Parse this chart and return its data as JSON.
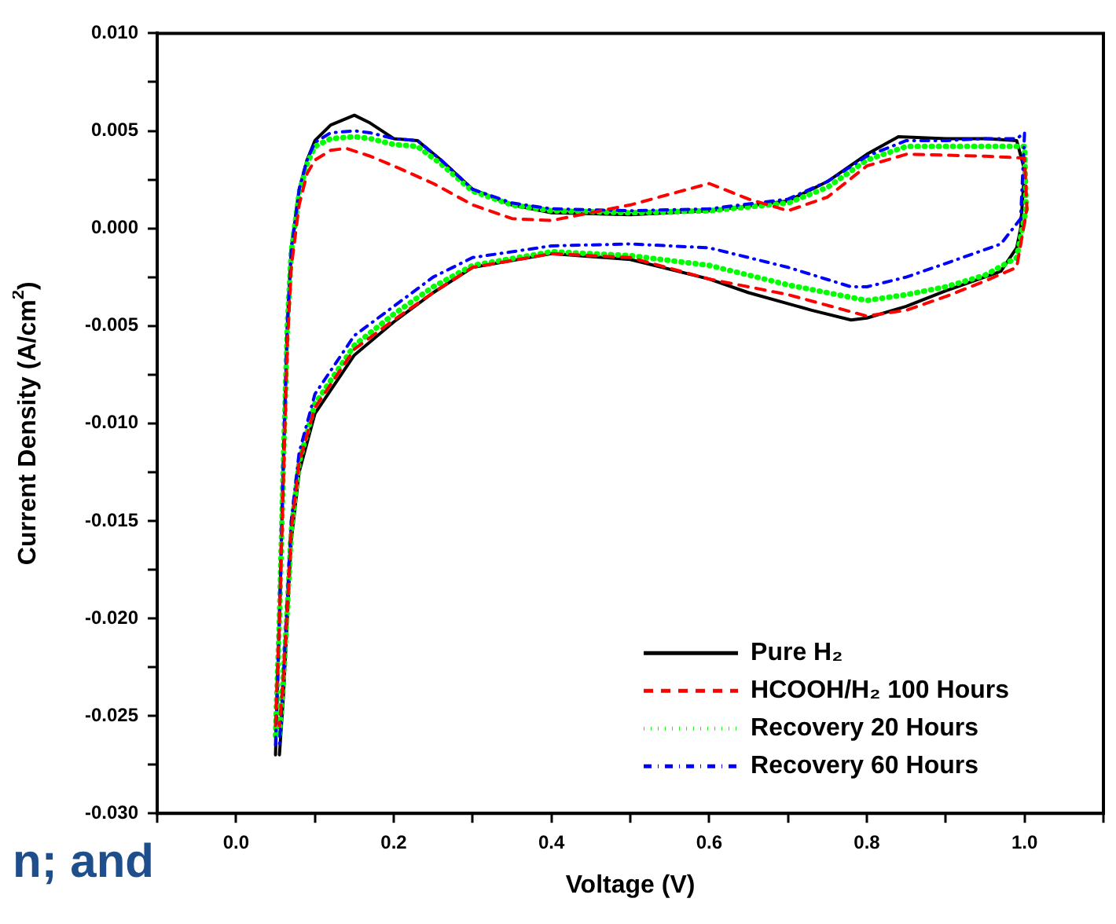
{
  "chart_data": {
    "type": "line",
    "xlabel": "Voltage (V)",
    "ylabel": "Current Density (A/cm$^{2}$)",
    "xlim": [
      -0.1,
      1.1
    ],
    "ylim": [
      -0.03,
      0.01
    ],
    "xticks": [
      {
        "value": -0.1,
        "label": null
      },
      {
        "value": 0,
        "label": "0.0"
      },
      {
        "value": 0.1,
        "label": null
      },
      {
        "value": 0.2,
        "label": "0.2"
      },
      {
        "value": 0.3,
        "label": null
      },
      {
        "value": 0.4,
        "label": "0.4"
      },
      {
        "value": 0.5,
        "label": null
      },
      {
        "value": 0.6,
        "label": "0.6"
      },
      {
        "value": 0.7,
        "label": null
      },
      {
        "value": 0.8,
        "label": "0.8"
      },
      {
        "value": 0.9,
        "label": null
      },
      {
        "value": 1,
        "label": "1.0"
      },
      {
        "value": 1.1,
        "label": null
      }
    ],
    "yticks": [
      {
        "value": -0.03,
        "label": "-0.030"
      },
      {
        "value": -0.0275,
        "label": null
      },
      {
        "value": -0.025,
        "label": "-0.025"
      },
      {
        "value": -0.0225,
        "label": null
      },
      {
        "value": -0.02,
        "label": "-0.020"
      },
      {
        "value": -0.0175,
        "label": null
      },
      {
        "value": -0.015,
        "label": "-0.015"
      },
      {
        "value": -0.0125,
        "label": null
      },
      {
        "value": -0.01,
        "label": "-0.010"
      },
      {
        "value": -0.0075,
        "label": null
      },
      {
        "value": -0.005,
        "label": "-0.005"
      },
      {
        "value": -0.0025,
        "label": null
      },
      {
        "value": 0,
        "label": "0.000"
      },
      {
        "value": 0.0025,
        "label": null
      },
      {
        "value": 0.005,
        "label": "0.005"
      },
      {
        "value": 0.0075,
        "label": null
      },
      {
        "value": 0.01,
        "label": "0.010"
      }
    ],
    "grid": false,
    "legend": "bottom right",
    "marker": "none",
    "annotations": [
      "n; and"
    ],
    "series": [
      {
        "name": "Pure H₂",
        "color": "#000000",
        "line_style": "solid",
        "x": [
          0.05,
          0.055,
          0.06,
          0.065,
          0.07,
          0.08,
          0.09,
          0.1,
          0.12,
          0.15,
          0.17,
          0.2,
          0.23,
          0.26,
          0.3,
          0.35,
          0.4,
          0.5,
          0.6,
          0.7,
          0.75,
          0.8,
          0.84,
          0.9,
          0.95,
          0.99,
          1.0,
          0.995,
          0.99,
          0.97,
          0.9,
          0.85,
          0.8,
          0.78,
          0.73,
          0.65,
          0.6,
          0.5,
          0.4,
          0.3,
          0.25,
          0.2,
          0.15,
          0.1,
          0.08,
          0.07,
          0.065,
          0.06,
          0.055
        ],
        "values": [
          -0.027,
          -0.02,
          -0.012,
          -0.005,
          -0.001,
          0.002,
          0.0035,
          0.0045,
          0.0053,
          0.0058,
          0.0054,
          0.0046,
          0.0045,
          0.0035,
          0.002,
          0.0012,
          0.0008,
          0.0007,
          0.0009,
          0.0014,
          0.0024,
          0.0038,
          0.0047,
          0.0046,
          0.0046,
          0.0045,
          0.003,
          0.0,
          -0.001,
          -0.0022,
          -0.0032,
          -0.004,
          -0.0046,
          -0.0047,
          -0.0042,
          -0.0033,
          -0.0026,
          -0.0016,
          -0.0013,
          -0.002,
          -0.0033,
          -0.0048,
          -0.0065,
          -0.0095,
          -0.0125,
          -0.016,
          -0.02,
          -0.024,
          -0.027
        ]
      },
      {
        "name": "HCOOH/H₂ 100 Hours",
        "color": "#ff0000",
        "line_style": "dashed",
        "x": [
          0.05,
          0.055,
          0.06,
          0.065,
          0.07,
          0.08,
          0.09,
          0.1,
          0.12,
          0.14,
          0.17,
          0.2,
          0.25,
          0.3,
          0.35,
          0.4,
          0.5,
          0.6,
          0.65,
          0.7,
          0.75,
          0.8,
          0.85,
          0.95,
          1.0,
          1.003,
          0.99,
          0.95,
          0.9,
          0.85,
          0.8,
          0.7,
          0.6,
          0.5,
          0.4,
          0.3,
          0.25,
          0.2,
          0.15,
          0.1,
          0.08,
          0.07,
          0.065,
          0.06,
          0.055
        ],
        "values": [
          -0.0255,
          -0.02,
          -0.013,
          -0.006,
          -0.002,
          0.0012,
          0.0028,
          0.0035,
          0.004,
          0.0041,
          0.0037,
          0.0032,
          0.0023,
          0.0012,
          0.0005,
          0.0004,
          0.0012,
          0.0023,
          0.0015,
          0.0009,
          0.0016,
          0.0032,
          0.0038,
          0.0037,
          0.0036,
          0.001,
          -0.002,
          -0.0027,
          -0.0035,
          -0.0042,
          -0.0045,
          -0.0034,
          -0.0026,
          -0.0015,
          -0.0013,
          -0.002,
          -0.0033,
          -0.0047,
          -0.0062,
          -0.0092,
          -0.012,
          -0.0155,
          -0.0195,
          -0.023,
          -0.0255
        ]
      },
      {
        "name": "Recovery 20 Hours",
        "color": "#00ff00",
        "line_style": "dotted",
        "x": [
          0.05,
          0.055,
          0.06,
          0.065,
          0.07,
          0.08,
          0.09,
          0.1,
          0.12,
          0.15,
          0.17,
          0.2,
          0.23,
          0.26,
          0.3,
          0.35,
          0.4,
          0.5,
          0.6,
          0.7,
          0.75,
          0.8,
          0.85,
          0.9,
          0.95,
          1.0,
          1.002,
          0.99,
          0.95,
          0.9,
          0.85,
          0.8,
          0.7,
          0.6,
          0.5,
          0.4,
          0.3,
          0.25,
          0.2,
          0.15,
          0.1,
          0.08,
          0.07,
          0.065,
          0.06,
          0.055
        ],
        "values": [
          -0.026,
          -0.02,
          -0.012,
          -0.005,
          -0.0012,
          0.0018,
          0.0033,
          0.0042,
          0.0046,
          0.0047,
          0.0046,
          0.0043,
          0.0042,
          0.0033,
          0.0019,
          0.0012,
          0.0009,
          0.0008,
          0.0009,
          0.0013,
          0.0021,
          0.0035,
          0.0042,
          0.0042,
          0.0042,
          0.0042,
          0.001,
          -0.0015,
          -0.0024,
          -0.003,
          -0.0034,
          -0.0037,
          -0.0029,
          -0.0019,
          -0.0014,
          -0.0012,
          -0.0019,
          -0.003,
          -0.0044,
          -0.006,
          -0.009,
          -0.012,
          -0.0155,
          -0.0195,
          -0.023,
          -0.026
        ]
      },
      {
        "name": "Recovery 60 Hours",
        "color": "#0000ff",
        "line_style": "dashdot",
        "x": [
          0.05,
          0.055,
          0.06,
          0.065,
          0.07,
          0.08,
          0.09,
          0.1,
          0.12,
          0.15,
          0.17,
          0.2,
          0.23,
          0.26,
          0.3,
          0.35,
          0.4,
          0.5,
          0.6,
          0.7,
          0.75,
          0.8,
          0.85,
          0.9,
          0.95,
          0.99,
          1.0,
          0.995,
          0.97,
          0.9,
          0.85,
          0.8,
          0.78,
          0.7,
          0.6,
          0.5,
          0.4,
          0.3,
          0.25,
          0.2,
          0.15,
          0.1,
          0.08,
          0.07,
          0.065,
          0.06,
          0.055
        ],
        "values": [
          -0.0265,
          -0.02,
          -0.012,
          -0.005,
          -0.0012,
          0.002,
          0.0035,
          0.0044,
          0.0049,
          0.005,
          0.0049,
          0.0046,
          0.0045,
          0.0035,
          0.002,
          0.0013,
          0.001,
          0.0009,
          0.001,
          0.0015,
          0.0024,
          0.0037,
          0.0045,
          0.0045,
          0.0046,
          0.0046,
          0.0049,
          0.0005,
          -0.0008,
          -0.0018,
          -0.0025,
          -0.003,
          -0.003,
          -0.002,
          -0.001,
          -0.0008,
          -0.0009,
          -0.0015,
          -0.0025,
          -0.004,
          -0.0055,
          -0.0085,
          -0.0115,
          -0.015,
          -0.019,
          -0.023,
          -0.0265
        ]
      }
    ]
  }
}
